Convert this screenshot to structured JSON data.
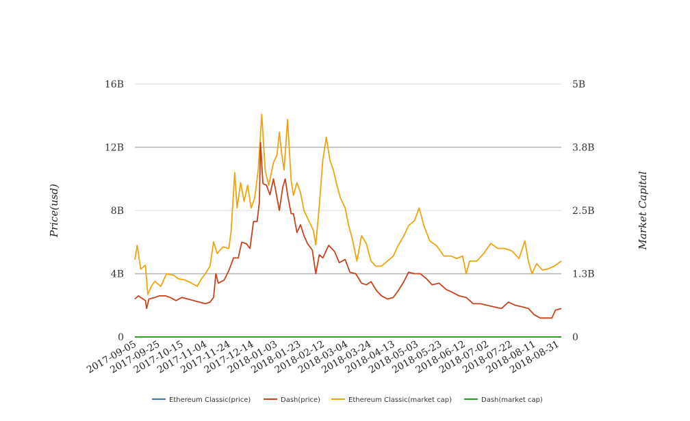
{
  "chart_data": {
    "type": "line",
    "ylabel": "Price(usd)",
    "y2label": "Market Capital",
    "x_ticks": [
      "2017-09-05",
      "2017-09-25",
      "2017-10-15",
      "2017-11-04",
      "2017-11-24",
      "2017-12-14",
      "2018-01-03",
      "2018-01-23",
      "2018-02-12",
      "2018-03-04",
      "2018-03-24",
      "2018-04-13",
      "2018-05-03",
      "2018-05-23",
      "2018-06-12",
      "2018-07-02",
      "2018-07-22",
      "2018-08-11",
      "2018-08-31"
    ],
    "x_range": [
      "2017-09-05",
      "2018-09-03"
    ],
    "y_ticks": [
      "0",
      "4B",
      "8B",
      "12B",
      "16B"
    ],
    "y_range": [
      0,
      16
    ],
    "y2_ticks": [
      "0",
      "1.3B",
      "2.5B",
      "3.8B",
      "5B"
    ],
    "y2_range": [
      0,
      5
    ],
    "grid": true,
    "legend_position": "bottom",
    "series": [
      {
        "name": "Ethereum Classic(price)",
        "axis": "left",
        "color": "#4472c4",
        "points": [
          [
            "2017-09-05",
            0.0
          ],
          [
            "2018-09-03",
            0.0
          ]
        ]
      },
      {
        "name": "Dash(price)",
        "axis": "left",
        "color": "#c9411b",
        "points": [
          [
            "2017-09-05",
            2.4
          ],
          [
            "2017-09-08",
            2.6
          ],
          [
            "2017-09-12",
            2.4
          ],
          [
            "2017-09-14",
            2.3
          ],
          [
            "2017-09-15",
            1.8
          ],
          [
            "2017-09-17",
            2.4
          ],
          [
            "2017-09-22",
            2.5
          ],
          [
            "2017-09-26",
            2.6
          ],
          [
            "2017-10-01",
            2.6
          ],
          [
            "2017-10-05",
            2.5
          ],
          [
            "2017-10-10",
            2.3
          ],
          [
            "2017-10-15",
            2.5
          ],
          [
            "2017-10-20",
            2.4
          ],
          [
            "2017-10-25",
            2.3
          ],
          [
            "2017-10-30",
            2.2
          ],
          [
            "2017-11-04",
            2.1
          ],
          [
            "2017-11-08",
            2.2
          ],
          [
            "2017-11-11",
            2.5
          ],
          [
            "2017-11-13",
            4.0
          ],
          [
            "2017-11-15",
            3.4
          ],
          [
            "2017-11-20",
            3.6
          ],
          [
            "2017-11-24",
            4.2
          ],
          [
            "2017-11-28",
            5.0
          ],
          [
            "2017-12-02",
            5.0
          ],
          [
            "2017-12-05",
            6.0
          ],
          [
            "2017-12-09",
            5.9
          ],
          [
            "2017-12-12",
            5.6
          ],
          [
            "2017-12-15",
            7.3
          ],
          [
            "2017-12-18",
            7.3
          ],
          [
            "2017-12-20",
            8.5
          ],
          [
            "2017-12-21",
            12.3
          ],
          [
            "2017-12-23",
            9.7
          ],
          [
            "2017-12-26",
            9.6
          ],
          [
            "2017-12-29",
            9.0
          ],
          [
            "2018-01-01",
            10.0
          ],
          [
            "2018-01-03",
            9.2
          ],
          [
            "2018-01-06",
            8.0
          ],
          [
            "2018-01-09",
            9.5
          ],
          [
            "2018-01-11",
            10.0
          ],
          [
            "2018-01-13",
            9.0
          ],
          [
            "2018-01-16",
            7.8
          ],
          [
            "2018-01-18",
            7.8
          ],
          [
            "2018-01-21",
            6.6
          ],
          [
            "2018-01-24",
            7.1
          ],
          [
            "2018-01-27",
            6.4
          ],
          [
            "2018-01-30",
            5.9
          ],
          [
            "2018-02-03",
            5.5
          ],
          [
            "2018-02-06",
            4.0
          ],
          [
            "2018-02-09",
            5.2
          ],
          [
            "2018-02-12",
            5.0
          ],
          [
            "2018-02-17",
            5.8
          ],
          [
            "2018-02-22",
            5.4
          ],
          [
            "2018-02-26",
            4.7
          ],
          [
            "2018-03-03",
            4.9
          ],
          [
            "2018-03-07",
            4.1
          ],
          [
            "2018-03-12",
            4.0
          ],
          [
            "2018-03-17",
            3.4
          ],
          [
            "2018-03-21",
            3.3
          ],
          [
            "2018-03-25",
            3.5
          ],
          [
            "2018-03-30",
            2.9
          ],
          [
            "2018-04-03",
            2.6
          ],
          [
            "2018-04-08",
            2.4
          ],
          [
            "2018-04-13",
            2.5
          ],
          [
            "2018-04-17",
            2.9
          ],
          [
            "2018-04-22",
            3.5
          ],
          [
            "2018-04-26",
            4.1
          ],
          [
            "2018-05-01",
            4.0
          ],
          [
            "2018-05-06",
            4.0
          ],
          [
            "2018-05-11",
            3.7
          ],
          [
            "2018-05-16",
            3.3
          ],
          [
            "2018-05-22",
            3.4
          ],
          [
            "2018-05-28",
            3.0
          ],
          [
            "2018-06-03",
            2.8
          ],
          [
            "2018-06-08",
            2.6
          ],
          [
            "2018-06-14",
            2.5
          ],
          [
            "2018-06-20",
            2.1
          ],
          [
            "2018-06-26",
            2.1
          ],
          [
            "2018-07-02",
            2.0
          ],
          [
            "2018-07-08",
            1.9
          ],
          [
            "2018-07-14",
            1.8
          ],
          [
            "2018-07-20",
            2.2
          ],
          [
            "2018-07-26",
            2.0
          ],
          [
            "2018-08-01",
            1.9
          ],
          [
            "2018-08-06",
            1.8
          ],
          [
            "2018-08-11",
            1.4
          ],
          [
            "2018-08-16",
            1.2
          ],
          [
            "2018-08-21",
            1.2
          ],
          [
            "2018-08-26",
            1.2
          ],
          [
            "2018-08-29",
            1.7
          ],
          [
            "2018-09-03",
            1.8
          ]
        ]
      },
      {
        "name": "Ethereum Classic(market cap)",
        "axis": "right",
        "color": "#f0a30a",
        "points": [
          [
            "2017-09-05",
            1.53
          ],
          [
            "2017-09-07",
            1.81
          ],
          [
            "2017-09-10",
            1.34
          ],
          [
            "2017-09-14",
            1.42
          ],
          [
            "2017-09-16",
            0.84
          ],
          [
            "2017-09-19",
            1.0
          ],
          [
            "2017-09-22",
            1.1
          ],
          [
            "2017-09-27",
            1.0
          ],
          [
            "2017-10-02",
            1.25
          ],
          [
            "2017-10-08",
            1.22
          ],
          [
            "2017-10-12",
            1.15
          ],
          [
            "2017-10-17",
            1.13
          ],
          [
            "2017-10-22",
            1.08
          ],
          [
            "2017-10-28",
            1.0
          ],
          [
            "2017-11-01",
            1.16
          ],
          [
            "2017-11-04",
            1.25
          ],
          [
            "2017-11-08",
            1.4
          ],
          [
            "2017-11-11",
            1.88
          ],
          [
            "2017-11-14",
            1.65
          ],
          [
            "2017-11-19",
            1.78
          ],
          [
            "2017-11-24",
            1.75
          ],
          [
            "2017-11-26",
            2.1
          ],
          [
            "2017-11-29",
            3.25
          ],
          [
            "2017-12-01",
            2.55
          ],
          [
            "2017-12-04",
            3.05
          ],
          [
            "2017-12-07",
            2.68
          ],
          [
            "2017-12-10",
            3.0
          ],
          [
            "2017-12-13",
            2.55
          ],
          [
            "2017-12-16",
            2.75
          ],
          [
            "2017-12-19",
            3.3
          ],
          [
            "2017-12-22",
            4.4
          ],
          [
            "2017-12-25",
            3.28
          ],
          [
            "2017-12-28",
            3.0
          ],
          [
            "2018-01-01",
            3.45
          ],
          [
            "2018-01-04",
            3.6
          ],
          [
            "2018-01-06",
            4.05
          ],
          [
            "2018-01-08",
            3.62
          ],
          [
            "2018-01-10",
            3.3
          ],
          [
            "2018-01-13",
            4.3
          ],
          [
            "2018-01-16",
            3.1
          ],
          [
            "2018-01-18",
            2.8
          ],
          [
            "2018-01-21",
            3.05
          ],
          [
            "2018-01-24",
            2.85
          ],
          [
            "2018-01-27",
            2.5
          ],
          [
            "2018-01-31",
            2.3
          ],
          [
            "2018-02-04",
            2.1
          ],
          [
            "2018-02-06",
            1.82
          ],
          [
            "2018-02-09",
            2.6
          ],
          [
            "2018-02-12",
            3.5
          ],
          [
            "2018-02-15",
            3.95
          ],
          [
            "2018-02-18",
            3.5
          ],
          [
            "2018-02-21",
            3.3
          ],
          [
            "2018-02-24",
            3.0
          ],
          [
            "2018-02-27",
            2.75
          ],
          [
            "2018-03-03",
            2.55
          ],
          [
            "2018-03-06",
            2.2
          ],
          [
            "2018-03-09",
            1.95
          ],
          [
            "2018-03-13",
            1.5
          ],
          [
            "2018-03-17",
            2.0
          ],
          [
            "2018-03-21",
            1.85
          ],
          [
            "2018-03-25",
            1.5
          ],
          [
            "2018-03-29",
            1.4
          ],
          [
            "2018-04-03",
            1.4
          ],
          [
            "2018-04-08",
            1.5
          ],
          [
            "2018-04-13",
            1.6
          ],
          [
            "2018-04-17",
            1.8
          ],
          [
            "2018-04-22",
            2.0
          ],
          [
            "2018-04-26",
            2.2
          ],
          [
            "2018-05-01",
            2.3
          ],
          [
            "2018-05-05",
            2.55
          ],
          [
            "2018-05-09",
            2.2
          ],
          [
            "2018-05-14",
            1.9
          ],
          [
            "2018-05-20",
            1.8
          ],
          [
            "2018-05-26",
            1.6
          ],
          [
            "2018-06-01",
            1.6
          ],
          [
            "2018-06-06",
            1.55
          ],
          [
            "2018-06-11",
            1.6
          ],
          [
            "2018-06-14",
            1.25
          ],
          [
            "2018-06-17",
            1.5
          ],
          [
            "2018-06-23",
            1.5
          ],
          [
            "2018-06-29",
            1.65
          ],
          [
            "2018-07-05",
            1.85
          ],
          [
            "2018-07-11",
            1.75
          ],
          [
            "2018-07-17",
            1.75
          ],
          [
            "2018-07-23",
            1.7
          ],
          [
            "2018-07-29",
            1.55
          ],
          [
            "2018-08-03",
            1.9
          ],
          [
            "2018-08-06",
            1.5
          ],
          [
            "2018-08-09",
            1.25
          ],
          [
            "2018-08-13",
            1.45
          ],
          [
            "2018-08-18",
            1.32
          ],
          [
            "2018-08-23",
            1.35
          ],
          [
            "2018-08-28",
            1.4
          ],
          [
            "2018-09-03",
            1.5
          ]
        ]
      },
      {
        "name": "Dash(market cap)",
        "axis": "right",
        "color": "#2e9d28",
        "points": [
          [
            "2017-09-05",
            0.0
          ],
          [
            "2018-09-03",
            0.0
          ]
        ]
      }
    ]
  }
}
